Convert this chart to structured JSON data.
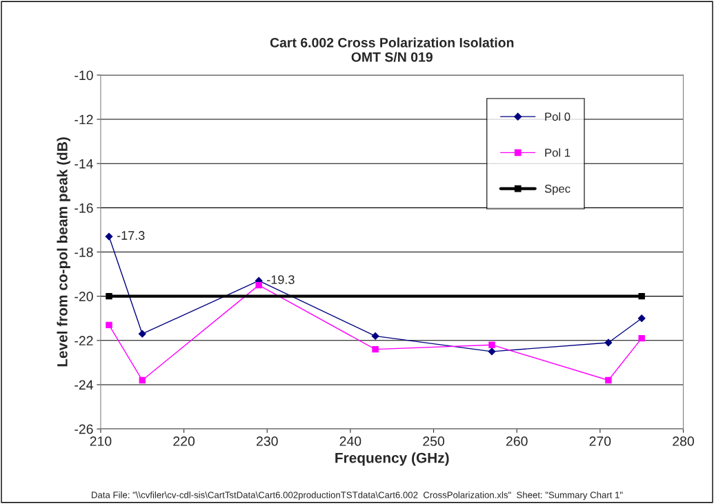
{
  "chart_data": {
    "type": "line",
    "title": "Cart 6.002 Cross Polarization Isolation\nOMT S/N 019",
    "xlabel": "Frequency (GHz)",
    "ylabel": "Level from co-pol beam peak (dB)",
    "x": [
      211,
      215,
      229,
      243,
      257,
      271,
      275
    ],
    "series": [
      {
        "name": "Pol 0",
        "color": "#000080",
        "marker": "diamond",
        "values": [
          -17.3,
          -21.7,
          -19.3,
          -21.8,
          -22.5,
          -22.1,
          -21.0
        ],
        "value_labels": [
          "-17.3",
          null,
          "-19.3",
          null,
          null,
          null,
          null
        ]
      },
      {
        "name": "Pol 1",
        "color": "#ff00ff",
        "marker": "square",
        "values": [
          -21.3,
          -23.8,
          -19.5,
          -22.4,
          -22.2,
          -23.8,
          -21.9
        ]
      },
      {
        "name": "Spec",
        "color": "#000000",
        "marker": "square",
        "x": [
          211,
          275
        ],
        "values": [
          -20,
          -20
        ]
      }
    ],
    "xlim": [
      210,
      280
    ],
    "xticks": [
      210,
      220,
      230,
      240,
      250,
      260,
      270,
      280
    ],
    "ylim": [
      -26,
      -10
    ],
    "yticks": [
      -26,
      -24,
      -22,
      -20,
      -18,
      -16,
      -14,
      -12,
      -10
    ],
    "grid": "y",
    "legend": "top right",
    "line_style": "solid",
    "annotations": [
      "Data File: \"\\\\cvfiler\\cv-cdl-sis\\CartTstData\\Cart6.002productionTSTdata\\Cart6.002  CrossPolarization.xls\"  Sheet: \"Summary Chart 1\""
    ]
  }
}
